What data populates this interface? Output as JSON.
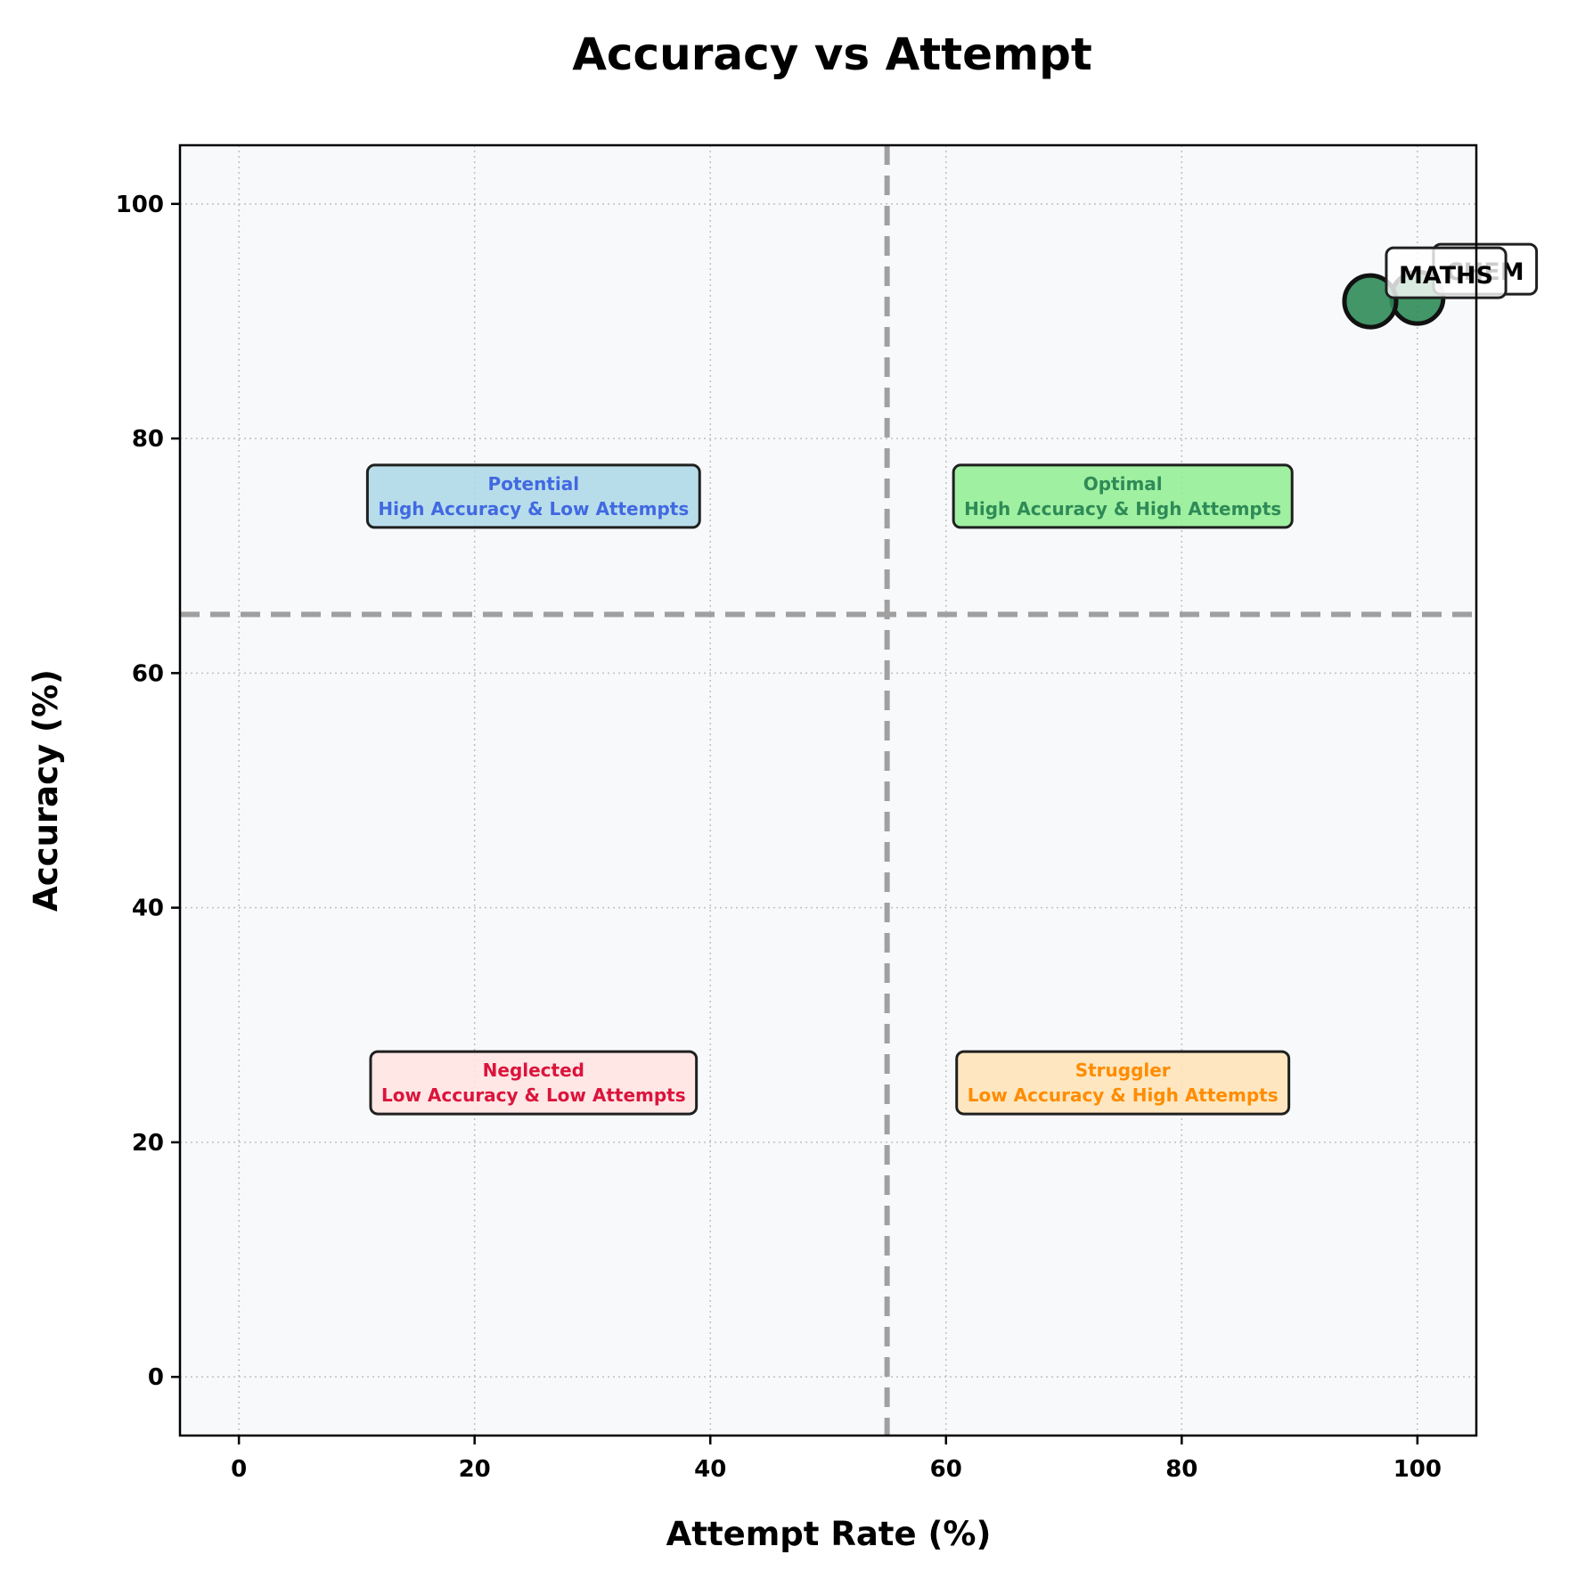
{
  "chart_data": {
    "type": "scatter",
    "title": "Accuracy vs Attempt",
    "xlabel": "Attempt Rate (%)",
    "ylabel": "Accuracy (%)",
    "xlim": [
      -5,
      105
    ],
    "ylim": [
      -5,
      105
    ],
    "xticks": [
      0,
      20,
      40,
      60,
      80,
      100
    ],
    "yticks": [
      0,
      20,
      40,
      60,
      80,
      100
    ],
    "grid": true,
    "thresholds": {
      "x": 55,
      "y": 65
    },
    "points": [
      {
        "label": "CHEM",
        "x": 100,
        "y": 92.0,
        "color": "#2e8b57"
      },
      {
        "label": "MATHS",
        "x": 96.0,
        "y": 91.7,
        "color": "#2e8b57"
      }
    ],
    "quadrants": [
      {
        "key": "potential",
        "name": "Potential",
        "desc": "High Accuracy & Low Attempts",
        "x": 25,
        "y": 75,
        "fill": "#add8e6",
        "text_color": "#4169e1"
      },
      {
        "key": "optimal",
        "name": "Optimal",
        "desc": "High Accuracy & High Attempts",
        "x": 75,
        "y": 75,
        "fill": "#90ee90",
        "text_color": "#2e8b57"
      },
      {
        "key": "neglected",
        "name": "Neglected",
        "desc": "Low Accuracy & Low Attempts",
        "x": 25,
        "y": 25,
        "fill": "#ffe4e1",
        "text_color": "#dc143c"
      },
      {
        "key": "struggler",
        "name": "Struggler",
        "desc": "Low Accuracy & High Attempts",
        "x": 75,
        "y": 25,
        "fill": "#ffe4b5",
        "text_color": "#ff8c00"
      }
    ],
    "colors": {
      "plot_background": "#f8f9fa",
      "threshold_line": "#a0a0a0",
      "grid": "#c0c0c0"
    }
  }
}
